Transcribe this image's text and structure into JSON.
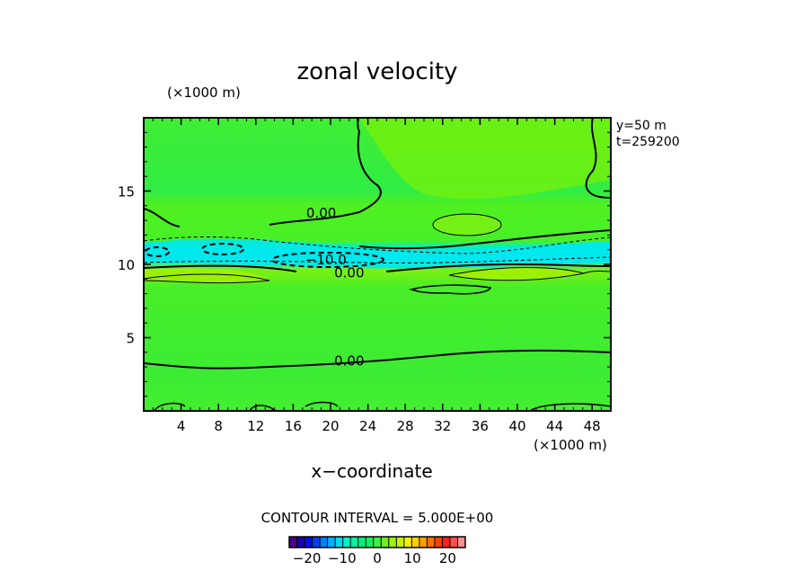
{
  "chart_data": {
    "type": "heatmap",
    "title": "zonal velocity",
    "xlabel": "x−coordinate",
    "ylabel": "",
    "x_unit": "(×1000 m)",
    "y_unit": "(×1000 m)",
    "xlim": [
      0,
      50
    ],
    "ylim": [
      0,
      20
    ],
    "x_ticks": [
      4,
      8,
      12,
      16,
      20,
      24,
      28,
      32,
      36,
      40,
      44,
      48
    ],
    "x_tick_labels": [
      "4",
      "8",
      "12",
      "16",
      "20",
      "24",
      "28",
      "32",
      "36",
      "40",
      "44",
      "48"
    ],
    "y_ticks": [
      5,
      10,
      15
    ],
    "y_tick_labels": [
      "5",
      "10",
      "15"
    ],
    "annotations": [
      "y=50  m",
      "t=259200"
    ],
    "contour_interval_text": "CONTOUR INTERVAL = 5.000E+00",
    "contour_labels": [
      {
        "text": "0.00",
        "x": 19,
        "y": 13.2
      },
      {
        "text": "−10.0",
        "x": 19.5,
        "y": 10.0
      },
      {
        "text": "0.00",
        "x": 22,
        "y": 9.1
      },
      {
        "text": "0.00",
        "x": 22,
        "y": 3.1
      }
    ],
    "colorbar": {
      "range": [
        -25,
        25
      ],
      "ticks": [
        -20,
        -10,
        0,
        10,
        20
      ],
      "tick_labels": [
        "−20",
        "−10",
        "0",
        "10",
        "20"
      ],
      "colors": [
        "#4b0082",
        "#1a00b0",
        "#0010e0",
        "#0040f0",
        "#0080ff",
        "#00b0ff",
        "#00d8f0",
        "#00f0c8",
        "#00f0a0",
        "#00f080",
        "#10f060",
        "#40f040",
        "#70f020",
        "#a0f000",
        "#c8f000",
        "#f0f000",
        "#ffd000",
        "#ffa000",
        "#ff7000",
        "#ff4000",
        "#ff2020",
        "#ff5050",
        "#ff9090"
      ]
    },
    "bands": [
      {
        "y": [
          0,
          2.6
        ],
        "value": 2,
        "color": "#40ec30"
      },
      {
        "y": [
          2.6,
          8.6
        ],
        "value": 3,
        "color": "#48ee28"
      },
      {
        "y": [
          8.6,
          9.8
        ],
        "value": 5,
        "color": "#80f010"
      },
      {
        "y": [
          9.8,
          11.3
        ],
        "value": -8,
        "color": "#00e6e0"
      },
      {
        "y": [
          11.3,
          13.5
        ],
        "value": 2,
        "color": "#50f020"
      },
      {
        "y": [
          13.5,
          20
        ],
        "value": 1,
        "color": "#30ec40"
      }
    ]
  }
}
